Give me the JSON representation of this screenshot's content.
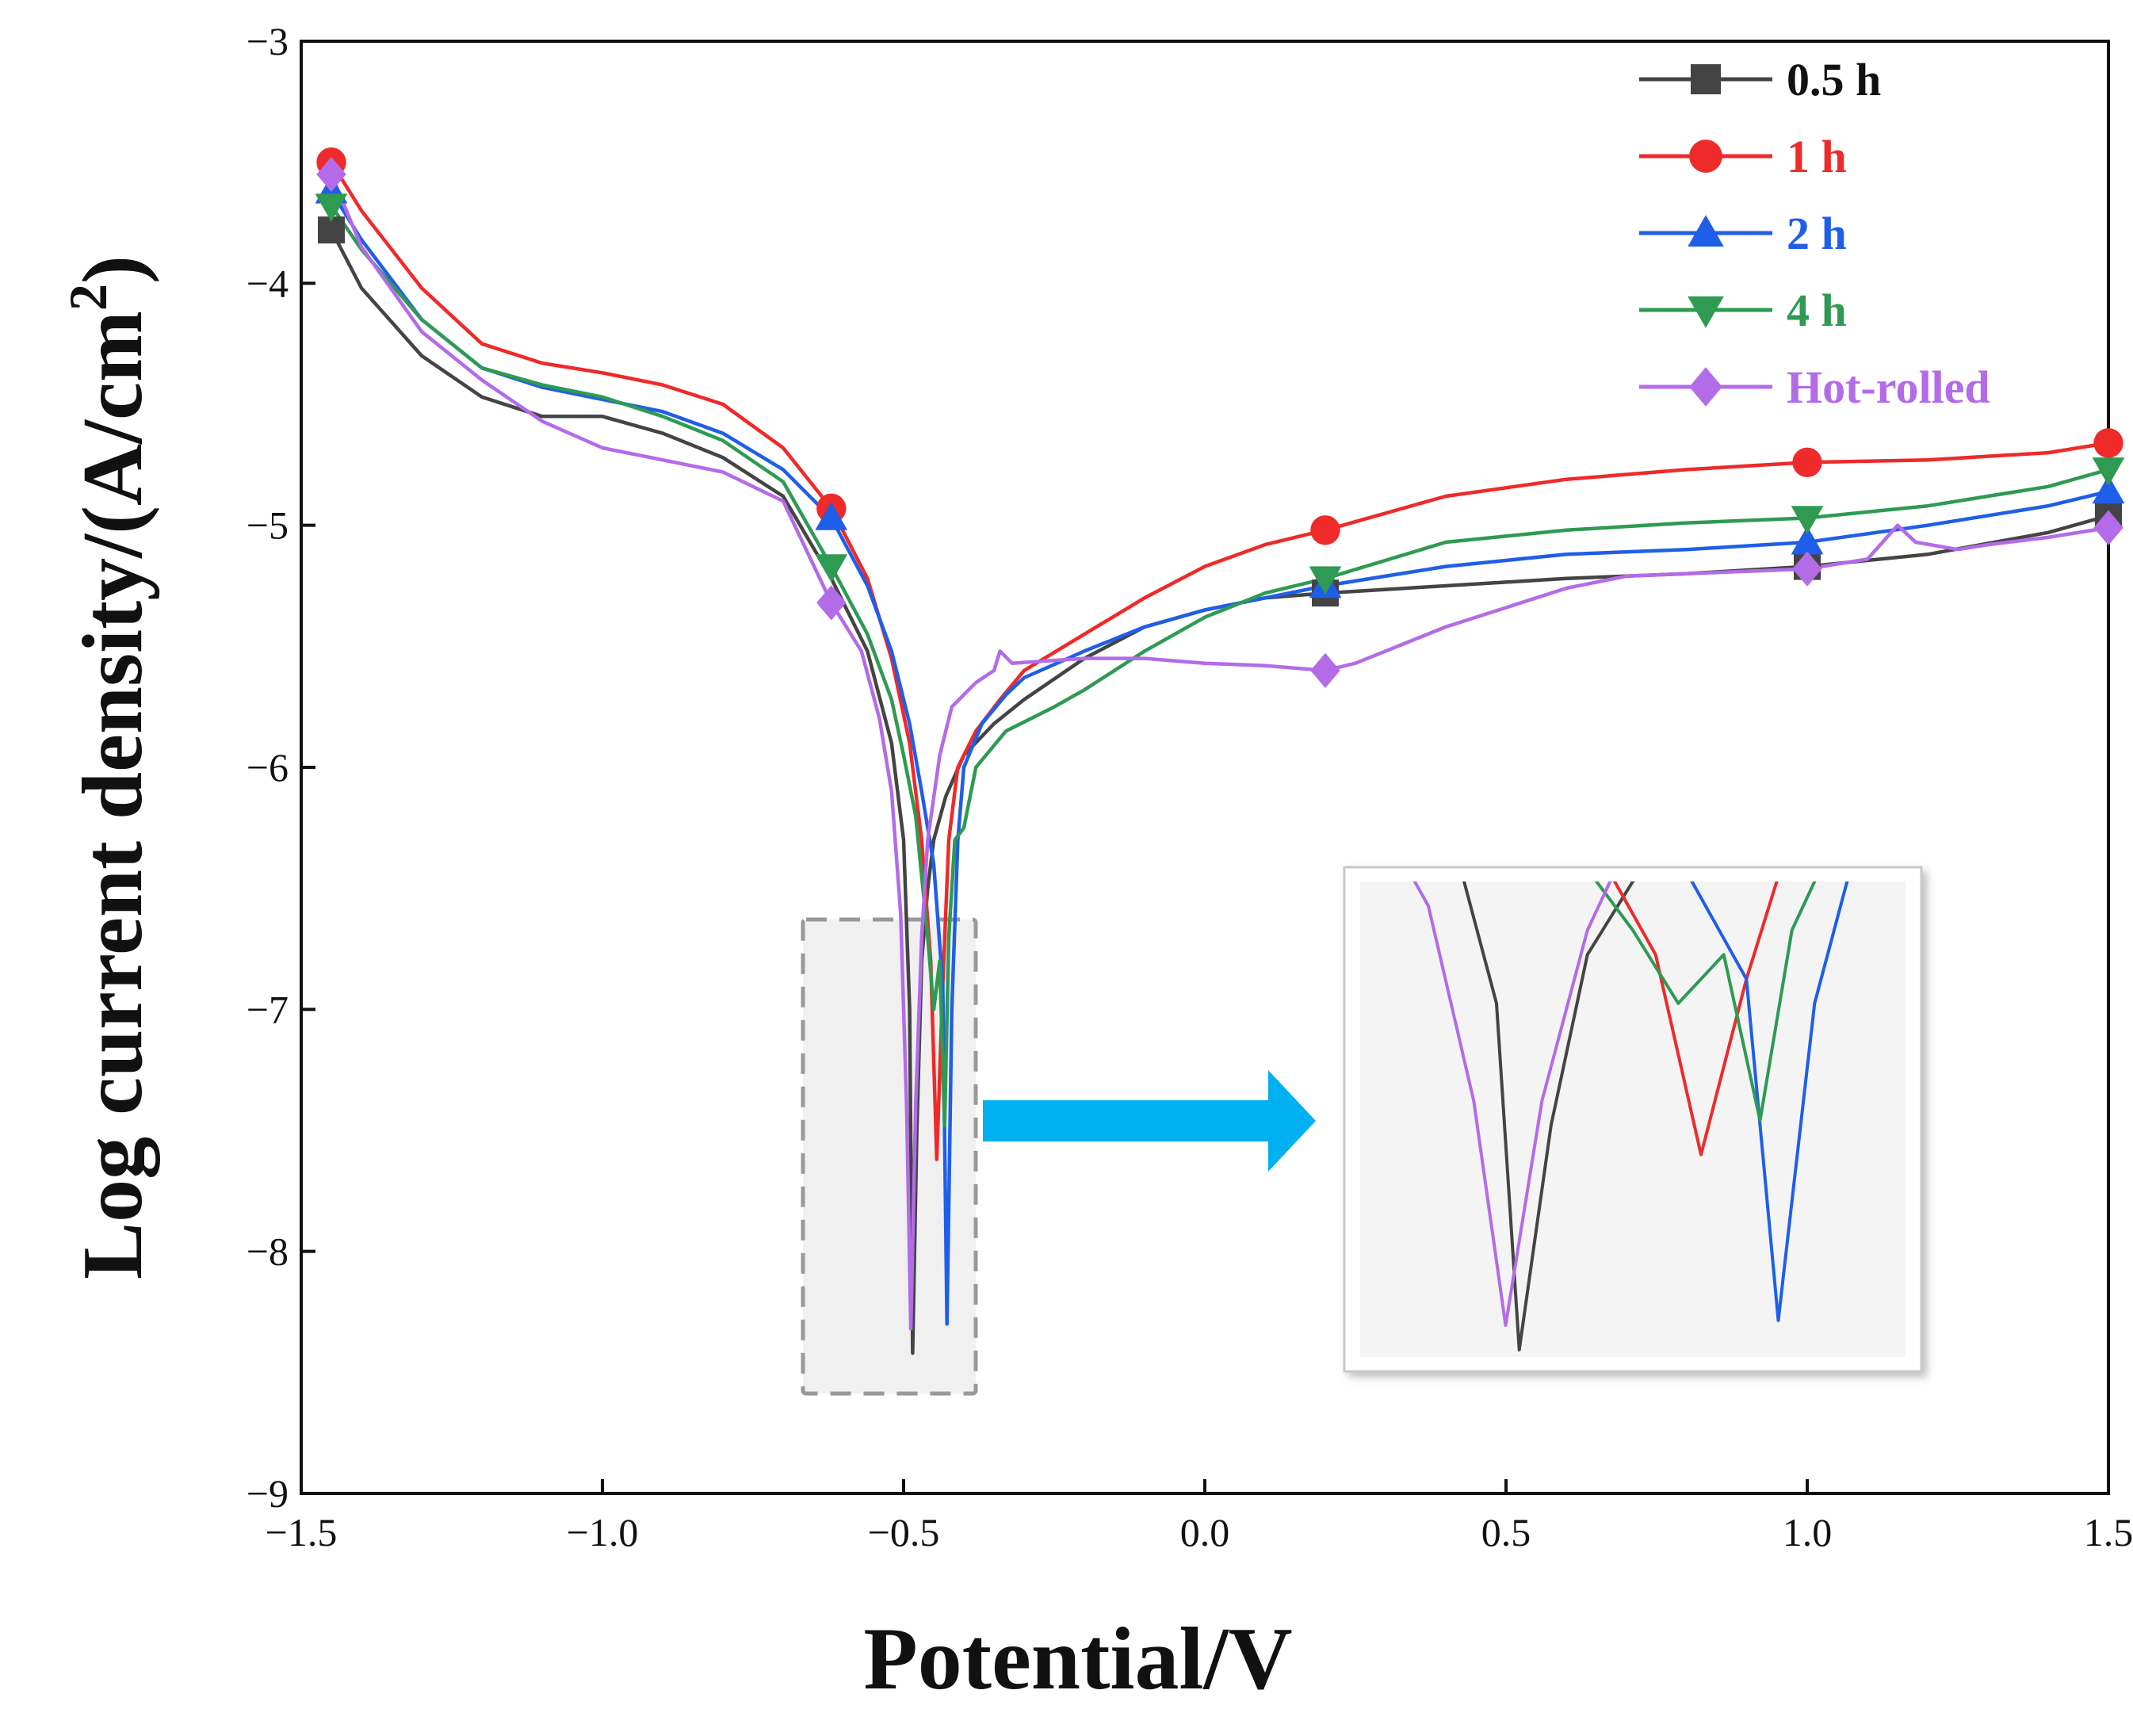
{
  "chart_data": {
    "type": "line",
    "xlabel": "Potential/V",
    "ylabel_main": "Log current density/(A/cm",
    "ylabel_sup": "2",
    "ylabel_close": ")",
    "xlim": [
      -1.5,
      1.5
    ],
    "ylim": [
      -9,
      -3
    ],
    "xticks": [
      -1.5,
      -1.0,
      -0.5,
      0.0,
      0.5,
      1.0,
      1.5
    ],
    "xtick_labels": [
      "−1.5",
      "−1.0",
      "−0.5",
      "0.0",
      "0.5",
      "1.0",
      "1.5"
    ],
    "yticks": [
      -3,
      -4,
      -5,
      -6,
      -7,
      -8,
      -9
    ],
    "ytick_labels": [
      "−3",
      "−4",
      "−5",
      "−6",
      "−7",
      "−8",
      "−9"
    ],
    "legend_position": "top-right",
    "inset": "zoomed view of the corrosion potential minima near −0.5 V",
    "series": [
      {
        "name": "0.5 h",
        "color": "#444444",
        "marker": "square",
        "points": [
          [
            -1.45,
            -3.78
          ],
          [
            -1.4,
            -4.02
          ],
          [
            -1.3,
            -4.3
          ],
          [
            -1.2,
            -4.47
          ],
          [
            -1.1,
            -4.55
          ],
          [
            -1.0,
            -4.55
          ],
          [
            -0.9,
            -4.62
          ],
          [
            -0.8,
            -4.72
          ],
          [
            -0.7,
            -4.88
          ],
          [
            -0.62,
            -5.22
          ],
          [
            -0.56,
            -5.52
          ],
          [
            -0.52,
            -5.9
          ],
          [
            -0.5,
            -6.3
          ],
          [
            -0.49,
            -7.0
          ],
          [
            -0.485,
            -8.42
          ],
          [
            -0.478,
            -7.5
          ],
          [
            -0.47,
            -6.8
          ],
          [
            -0.46,
            -6.5
          ],
          [
            -0.45,
            -6.3
          ],
          [
            -0.43,
            -6.12
          ],
          [
            -0.4,
            -5.95
          ],
          [
            -0.35,
            -5.82
          ],
          [
            -0.3,
            -5.72
          ],
          [
            -0.2,
            -5.55
          ],
          [
            -0.1,
            -5.42
          ],
          [
            0.0,
            -5.35
          ],
          [
            0.1,
            -5.3
          ],
          [
            0.2,
            -5.28
          ],
          [
            0.4,
            -5.25
          ],
          [
            0.6,
            -5.22
          ],
          [
            0.8,
            -5.2
          ],
          [
            1.0,
            -5.17
          ],
          [
            1.2,
            -5.12
          ],
          [
            1.4,
            -5.03
          ],
          [
            1.5,
            -4.96
          ]
        ],
        "marker_x": [
          -1.45,
          0.2,
          1.0,
          1.5
        ]
      },
      {
        "name": "1 h",
        "color": "#ee2a2a",
        "marker": "circle",
        "points": [
          [
            -1.45,
            -3.5
          ],
          [
            -1.4,
            -3.7
          ],
          [
            -1.3,
            -4.02
          ],
          [
            -1.2,
            -4.25
          ],
          [
            -1.1,
            -4.33
          ],
          [
            -1.0,
            -4.37
          ],
          [
            -0.9,
            -4.42
          ],
          [
            -0.8,
            -4.5
          ],
          [
            -0.7,
            -4.68
          ],
          [
            -0.62,
            -4.93
          ],
          [
            -0.56,
            -5.22
          ],
          [
            -0.52,
            -5.55
          ],
          [
            -0.49,
            -5.9
          ],
          [
            -0.47,
            -6.3
          ],
          [
            -0.455,
            -6.8
          ],
          [
            -0.445,
            -7.62
          ],
          [
            -0.435,
            -6.9
          ],
          [
            -0.425,
            -6.3
          ],
          [
            -0.41,
            -6.0
          ],
          [
            -0.38,
            -5.85
          ],
          [
            -0.34,
            -5.72
          ],
          [
            -0.3,
            -5.6
          ],
          [
            -0.2,
            -5.45
          ],
          [
            -0.1,
            -5.3
          ],
          [
            0.0,
            -5.17
          ],
          [
            0.1,
            -5.08
          ],
          [
            0.2,
            -5.02
          ],
          [
            0.4,
            -4.88
          ],
          [
            0.6,
            -4.81
          ],
          [
            0.8,
            -4.77
          ],
          [
            1.0,
            -4.74
          ],
          [
            1.2,
            -4.73
          ],
          [
            1.4,
            -4.7
          ],
          [
            1.5,
            -4.66
          ]
        ],
        "marker_x": [
          -1.45,
          -0.62,
          0.2,
          1.0,
          1.5
        ]
      },
      {
        "name": "2 h",
        "color": "#1f5ee8",
        "marker": "triangle-up",
        "points": [
          [
            -1.45,
            -3.62
          ],
          [
            -1.4,
            -3.82
          ],
          [
            -1.3,
            -4.15
          ],
          [
            -1.2,
            -4.35
          ],
          [
            -1.1,
            -4.43
          ],
          [
            -1.0,
            -4.48
          ],
          [
            -0.9,
            -4.53
          ],
          [
            -0.8,
            -4.62
          ],
          [
            -0.7,
            -4.77
          ],
          [
            -0.62,
            -4.97
          ],
          [
            -0.56,
            -5.25
          ],
          [
            -0.52,
            -5.52
          ],
          [
            -0.49,
            -5.82
          ],
          [
            -0.47,
            -6.1
          ],
          [
            -0.45,
            -6.4
          ],
          [
            -0.435,
            -6.9
          ],
          [
            -0.428,
            -8.3
          ],
          [
            -0.42,
            -7.0
          ],
          [
            -0.41,
            -6.3
          ],
          [
            -0.4,
            -6.0
          ],
          [
            -0.37,
            -5.82
          ],
          [
            -0.33,
            -5.7
          ],
          [
            -0.3,
            -5.63
          ],
          [
            -0.2,
            -5.52
          ],
          [
            -0.1,
            -5.42
          ],
          [
            0.0,
            -5.35
          ],
          [
            0.1,
            -5.3
          ],
          [
            0.2,
            -5.25
          ],
          [
            0.4,
            -5.17
          ],
          [
            0.6,
            -5.12
          ],
          [
            0.8,
            -5.1
          ],
          [
            1.0,
            -5.07
          ],
          [
            1.2,
            -5.0
          ],
          [
            1.4,
            -4.92
          ],
          [
            1.5,
            -4.86
          ]
        ],
        "marker_x": [
          -1.45,
          -0.62,
          0.2,
          1.0,
          1.5
        ]
      },
      {
        "name": "4 h",
        "color": "#2e9a52",
        "marker": "triangle-down",
        "points": [
          [
            -1.45,
            -3.68
          ],
          [
            -1.4,
            -3.86
          ],
          [
            -1.3,
            -4.15
          ],
          [
            -1.2,
            -4.35
          ],
          [
            -1.1,
            -4.42
          ],
          [
            -1.0,
            -4.47
          ],
          [
            -0.9,
            -4.55
          ],
          [
            -0.8,
            -4.65
          ],
          [
            -0.7,
            -4.82
          ],
          [
            -0.62,
            -5.17
          ],
          [
            -0.56,
            -5.45
          ],
          [
            -0.52,
            -5.72
          ],
          [
            -0.5,
            -5.95
          ],
          [
            -0.48,
            -6.2
          ],
          [
            -0.46,
            -6.7
          ],
          [
            -0.45,
            -7.0
          ],
          [
            -0.44,
            -6.8
          ],
          [
            -0.432,
            -7.48
          ],
          [
            -0.425,
            -6.7
          ],
          [
            -0.415,
            -6.3
          ],
          [
            -0.4,
            -6.25
          ],
          [
            -0.38,
            -6.0
          ],
          [
            -0.33,
            -5.85
          ],
          [
            -0.25,
            -5.75
          ],
          [
            -0.2,
            -5.68
          ],
          [
            -0.1,
            -5.52
          ],
          [
            0.0,
            -5.38
          ],
          [
            0.1,
            -5.28
          ],
          [
            0.2,
            -5.22
          ],
          [
            0.4,
            -5.07
          ],
          [
            0.6,
            -5.02
          ],
          [
            0.8,
            -4.99
          ],
          [
            1.0,
            -4.97
          ],
          [
            1.2,
            -4.92
          ],
          [
            1.4,
            -4.84
          ],
          [
            1.5,
            -4.77
          ]
        ],
        "marker_x": [
          -1.45,
          -0.62,
          0.2,
          1.0,
          1.5
        ]
      },
      {
        "name": "Hot-rolled",
        "color": "#b36be8",
        "marker": "diamond",
        "points": [
          [
            -1.45,
            -3.55
          ],
          [
            -1.4,
            -3.85
          ],
          [
            -1.3,
            -4.2
          ],
          [
            -1.2,
            -4.4
          ],
          [
            -1.1,
            -4.57
          ],
          [
            -1.0,
            -4.68
          ],
          [
            -0.9,
            -4.73
          ],
          [
            -0.8,
            -4.78
          ],
          [
            -0.7,
            -4.9
          ],
          [
            -0.62,
            -5.32
          ],
          [
            -0.57,
            -5.52
          ],
          [
            -0.54,
            -5.8
          ],
          [
            -0.52,
            -6.1
          ],
          [
            -0.505,
            -6.6
          ],
          [
            -0.495,
            -7.4
          ],
          [
            -0.488,
            -8.32
          ],
          [
            -0.48,
            -7.4
          ],
          [
            -0.47,
            -6.7
          ],
          [
            -0.46,
            -6.3
          ],
          [
            -0.44,
            -5.95
          ],
          [
            -0.42,
            -5.75
          ],
          [
            -0.38,
            -5.65
          ],
          [
            -0.35,
            -5.6
          ],
          [
            -0.34,
            -5.52
          ],
          [
            -0.32,
            -5.57
          ],
          [
            -0.2,
            -5.55
          ],
          [
            -0.1,
            -5.55
          ],
          [
            0.0,
            -5.57
          ],
          [
            0.1,
            -5.58
          ],
          [
            0.2,
            -5.6
          ],
          [
            0.25,
            -5.57
          ],
          [
            0.3,
            -5.52
          ],
          [
            0.4,
            -5.42
          ],
          [
            0.5,
            -5.34
          ],
          [
            0.6,
            -5.26
          ],
          [
            0.7,
            -5.21
          ],
          [
            0.8,
            -5.2
          ],
          [
            1.0,
            -5.18
          ],
          [
            1.1,
            -5.14
          ],
          [
            1.15,
            -5.0
          ],
          [
            1.18,
            -5.07
          ],
          [
            1.25,
            -5.1
          ],
          [
            1.3,
            -5.08
          ],
          [
            1.4,
            -5.05
          ],
          [
            1.5,
            -5.01
          ]
        ],
        "marker_x": [
          -1.45,
          -0.62,
          0.2,
          1.0,
          1.5
        ]
      }
    ]
  },
  "colors": {
    "arrow": "#00b0f0",
    "dashed_box_fill": "#f0f0f0",
    "dashed_box_stroke": "#999999",
    "inset_fill": "#f4f4f4"
  }
}
